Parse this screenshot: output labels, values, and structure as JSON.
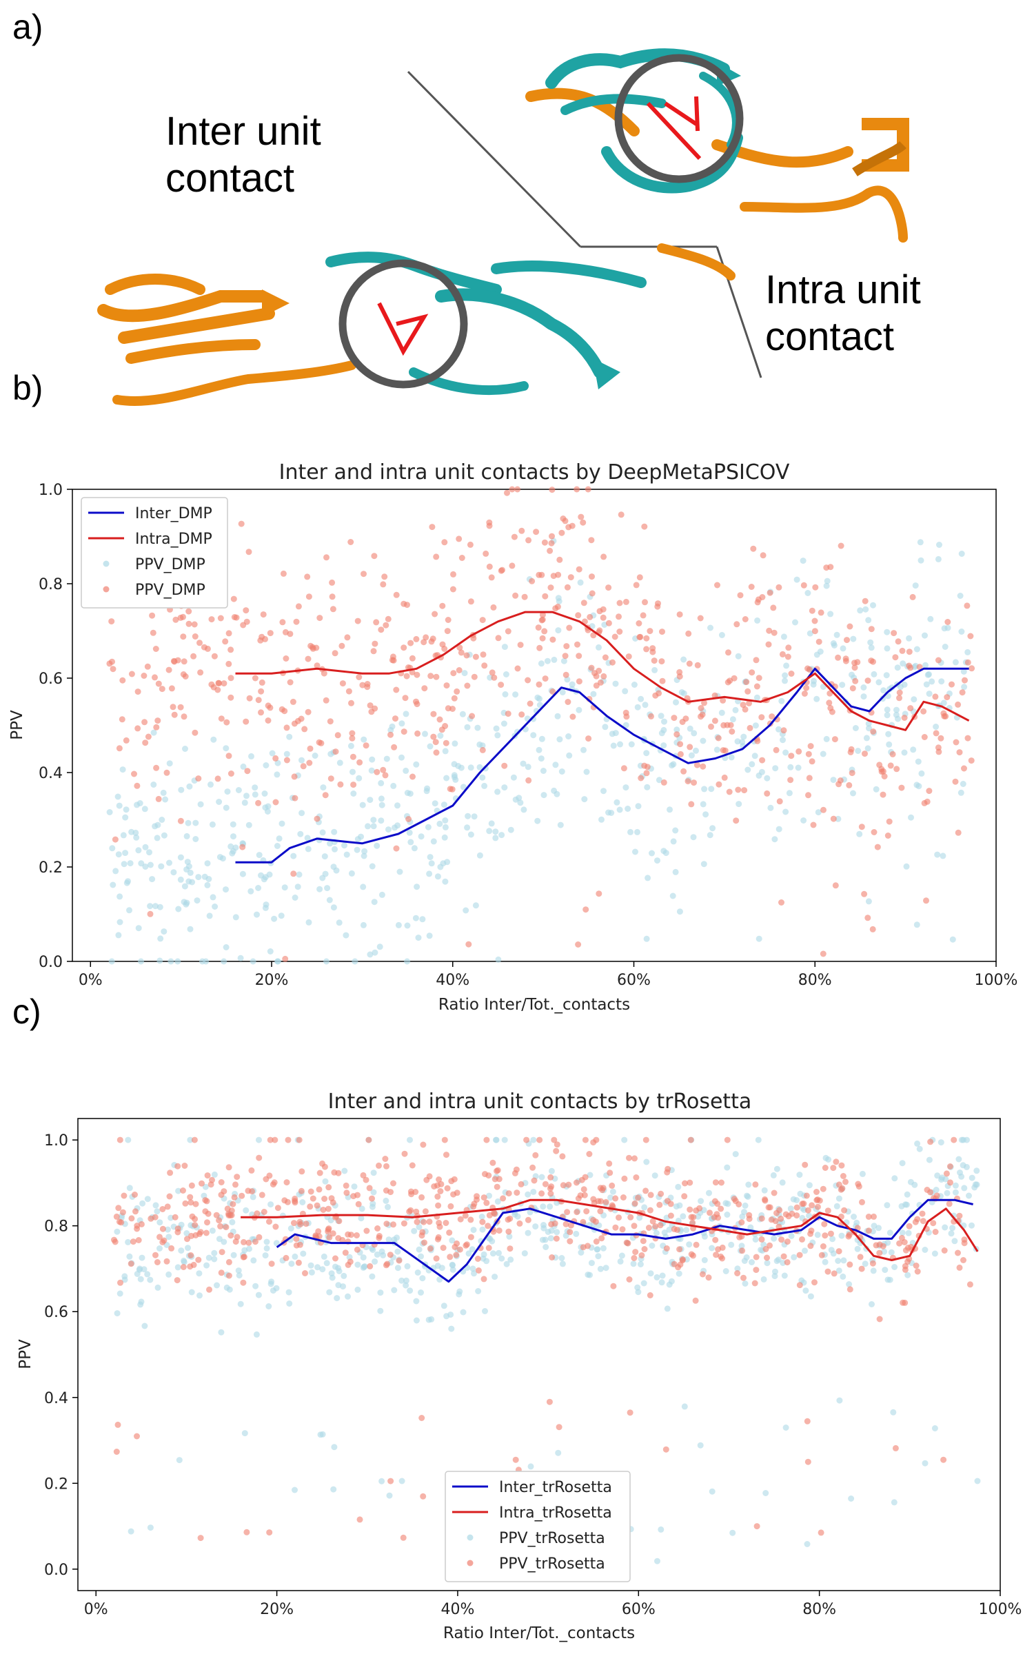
{
  "panels": {
    "a": "a)",
    "b": "b)",
    "c": "c)"
  },
  "illustration": {
    "inter_label": [
      "Inter unit",
      "contact"
    ],
    "intra_label": [
      "Intra unit",
      "contact"
    ],
    "colors": {
      "unit1": "#e8890f",
      "unit2": "#1fa3a3",
      "contact": "#e8191c",
      "circle": "#555555"
    }
  },
  "chart_data": [
    {
      "type": "scatter",
      "title": "Inter and intra unit contacts by DeepMetaPSICOV",
      "xlabel": "Ratio Inter/Tot._contacts",
      "ylabel": "PPV",
      "xlim": [
        -0.02,
        1.0
      ],
      "ylim": [
        0.0,
        1.0
      ],
      "x_ticks": [
        0,
        0.2,
        0.4,
        0.6,
        0.8,
        1.0
      ],
      "x_tick_labels": [
        "0%",
        "20%",
        "40%",
        "60%",
        "80%",
        "100%"
      ],
      "y_ticks": [
        0.0,
        0.2,
        0.4,
        0.6,
        0.8,
        1.0
      ],
      "y_tick_labels": [
        "0.0",
        "0.2",
        "0.4",
        "0.6",
        "0.8",
        "1.0"
      ],
      "legend_position": "upper-left",
      "series": [
        {
          "name": "Inter_DMP",
          "kind": "line",
          "color": "#0b0bc8",
          "x": [
            0.16,
            0.2,
            0.22,
            0.25,
            0.3,
            0.34,
            0.37,
            0.4,
            0.43,
            0.46,
            0.49,
            0.52,
            0.54,
            0.57,
            0.6,
            0.63,
            0.66,
            0.69,
            0.72,
            0.75,
            0.78,
            0.8,
            0.82,
            0.84,
            0.86,
            0.88,
            0.9,
            0.92,
            0.95,
            0.97
          ],
          "y": [
            0.21,
            0.21,
            0.24,
            0.26,
            0.25,
            0.27,
            0.3,
            0.33,
            0.4,
            0.46,
            0.52,
            0.58,
            0.57,
            0.52,
            0.48,
            0.45,
            0.42,
            0.43,
            0.45,
            0.5,
            0.57,
            0.62,
            0.58,
            0.54,
            0.53,
            0.57,
            0.6,
            0.62,
            0.62,
            0.62
          ]
        },
        {
          "name": "Intra_DMP",
          "kind": "line",
          "color": "#d81e1e",
          "x": [
            0.16,
            0.2,
            0.25,
            0.3,
            0.33,
            0.36,
            0.39,
            0.42,
            0.45,
            0.48,
            0.51,
            0.54,
            0.57,
            0.6,
            0.63,
            0.66,
            0.7,
            0.74,
            0.77,
            0.8,
            0.82,
            0.84,
            0.86,
            0.88,
            0.9,
            0.92,
            0.94,
            0.97
          ],
          "y": [
            0.61,
            0.61,
            0.62,
            0.61,
            0.61,
            0.62,
            0.65,
            0.69,
            0.72,
            0.74,
            0.74,
            0.72,
            0.68,
            0.62,
            0.58,
            0.55,
            0.56,
            0.55,
            0.57,
            0.61,
            0.57,
            0.53,
            0.51,
            0.5,
            0.49,
            0.55,
            0.54,
            0.51
          ]
        },
        {
          "name": "PPV_DMP",
          "kind": "points",
          "color": "#add8e6"
        },
        {
          "name": "PPV_DMP",
          "kind": "points",
          "color": "#f08070"
        }
      ]
    },
    {
      "type": "scatter",
      "title": "Inter and intra unit contacts by trRosetta",
      "xlabel": "Ratio Inter/Tot._contacts",
      "ylabel": "PPV",
      "xlim": [
        -0.02,
        1.0
      ],
      "ylim": [
        -0.05,
        1.05
      ],
      "x_ticks": [
        0,
        0.2,
        0.4,
        0.6,
        0.8,
        1.0
      ],
      "x_tick_labels": [
        "0%",
        "20%",
        "40%",
        "60%",
        "80%",
        "100%"
      ],
      "y_ticks": [
        0.0,
        0.2,
        0.4,
        0.6,
        0.8,
        1.0
      ],
      "y_tick_labels": [
        "0.0",
        "0.2",
        "0.4",
        "0.6",
        "0.8",
        "1.0"
      ],
      "legend_position": "lower-center",
      "series": [
        {
          "name": "Inter_trRosetta",
          "kind": "line",
          "color": "#0b0bc8",
          "x": [
            0.2,
            0.22,
            0.26,
            0.3,
            0.33,
            0.35,
            0.37,
            0.39,
            0.41,
            0.43,
            0.45,
            0.48,
            0.51,
            0.54,
            0.57,
            0.6,
            0.63,
            0.66,
            0.69,
            0.72,
            0.75,
            0.78,
            0.8,
            0.82,
            0.84,
            0.86,
            0.88,
            0.9,
            0.92,
            0.95,
            0.97
          ],
          "y": [
            0.75,
            0.78,
            0.76,
            0.76,
            0.76,
            0.73,
            0.7,
            0.67,
            0.71,
            0.77,
            0.83,
            0.84,
            0.82,
            0.8,
            0.78,
            0.78,
            0.77,
            0.78,
            0.8,
            0.79,
            0.78,
            0.79,
            0.82,
            0.8,
            0.79,
            0.77,
            0.77,
            0.82,
            0.86,
            0.86,
            0.85
          ]
        },
        {
          "name": "Intra_trRosetta",
          "kind": "line",
          "color": "#d81e1e",
          "x": [
            0.16,
            0.2,
            0.25,
            0.3,
            0.35,
            0.4,
            0.45,
            0.48,
            0.51,
            0.54,
            0.57,
            0.6,
            0.63,
            0.66,
            0.69,
            0.72,
            0.75,
            0.78,
            0.8,
            0.82,
            0.84,
            0.86,
            0.88,
            0.9,
            0.92,
            0.94,
            0.96,
            0.975
          ],
          "y": [
            0.82,
            0.82,
            0.825,
            0.825,
            0.82,
            0.83,
            0.84,
            0.86,
            0.86,
            0.85,
            0.84,
            0.83,
            0.81,
            0.8,
            0.79,
            0.78,
            0.79,
            0.8,
            0.83,
            0.82,
            0.78,
            0.73,
            0.72,
            0.73,
            0.81,
            0.84,
            0.79,
            0.74
          ]
        },
        {
          "name": "PPV_trRosetta",
          "kind": "points",
          "color": "#add8e6"
        },
        {
          "name": "PPV_trRosetta",
          "kind": "points",
          "color": "#f08070"
        }
      ]
    }
  ]
}
